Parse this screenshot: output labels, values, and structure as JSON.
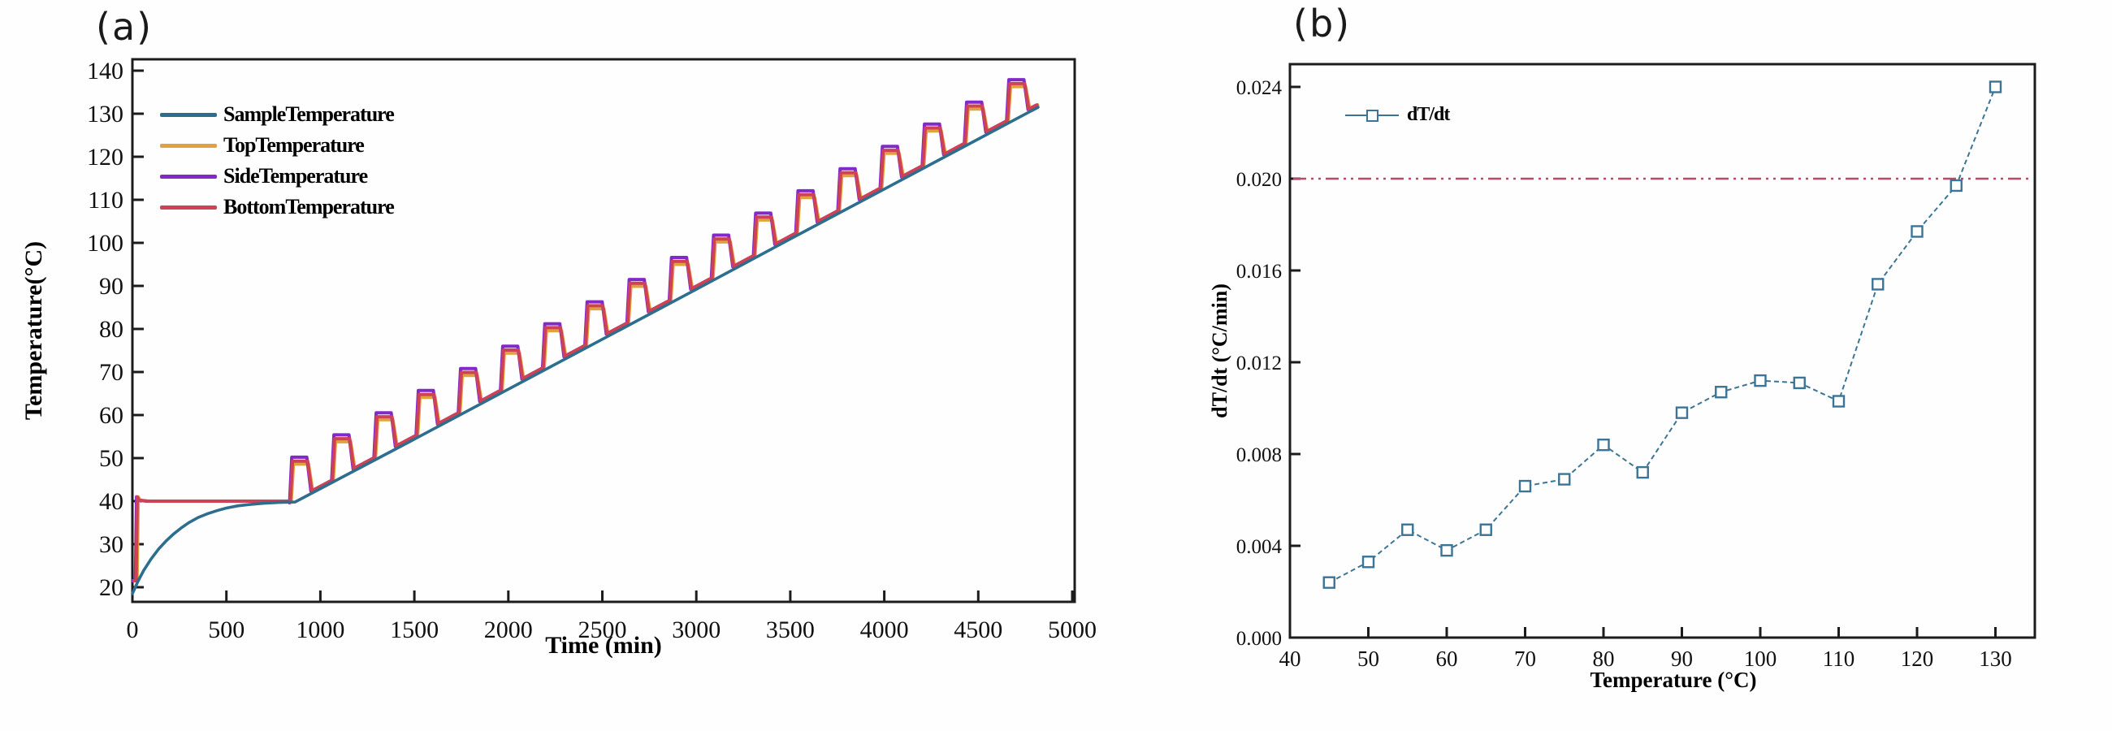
{
  "colors": {
    "sample_blue": "#2d6d8e",
    "top_orange": "#e2a23b",
    "side_purple": "#8229c9",
    "bottom_crimson": "#cf4155",
    "dtdt_blue": "#3c7495",
    "ref_red": "#bc4a66",
    "axis_black": "#1c1c1c"
  },
  "chart_data": [
    {
      "type": "line",
      "panel": "(a)",
      "xlabel": "Time (min)",
      "ylabel": "Temperature(°C)",
      "xlim": [
        0,
        5015
      ],
      "ylim": [
        16.6,
        142.6
      ],
      "xticks": [
        0,
        500,
        1000,
        1500,
        2000,
        2500,
        3000,
        3500,
        4000,
        4500,
        5000
      ],
      "yticks": [
        20,
        30,
        40,
        50,
        60,
        70,
        80,
        90,
        100,
        110,
        120,
        130,
        140
      ],
      "grid": false,
      "legend_position": "upper-left-inside",
      "legend": [
        {
          "name": "SampleTemperature",
          "color": "#2d6d8e"
        },
        {
          "name": "TopTemperature",
          "color": "#e2a23b"
        },
        {
          "name": "SideTemperature",
          "color": "#8229c9"
        },
        {
          "name": "BottomTemperature",
          "color": "#cf4155"
        }
      ],
      "series": {
        "sample": {
          "name": "SampleTemperature",
          "color": "#2d6d8e",
          "points": [
            [
              0,
              18.5
            ],
            [
              30,
              21.4
            ],
            [
              60,
              23.9
            ],
            [
              100,
              26.6
            ],
            [
              140,
              28.9
            ],
            [
              180,
              30.8
            ],
            [
              220,
              32.4
            ],
            [
              260,
              33.8
            ],
            [
              300,
              35.0
            ],
            [
              350,
              36.2
            ],
            [
              400,
              37.1
            ],
            [
              450,
              37.8
            ],
            [
              500,
              38.4
            ],
            [
              560,
              38.9
            ],
            [
              620,
              39.2
            ],
            [
              700,
              39.5
            ],
            [
              780,
              39.7
            ],
            [
              865,
              39.8
            ],
            [
              1500,
              54.4
            ],
            [
              2000,
              66.0
            ],
            [
              2500,
              77.6
            ],
            [
              3000,
              89.2
            ],
            [
              3500,
              100.9
            ],
            [
              4000,
              112.5
            ],
            [
              4400,
              121.8
            ],
            [
              4818,
              131.5
            ]
          ]
        },
        "furnace_pulses": {
          "description": "Top/Side/Bottom heater curves: fast rise to 40C, plateau, then 18 stepped pulses ~5C apart riding above the sample ramp",
          "start_times": [
            840,
            1064,
            1289,
            1513,
            1738,
            1962,
            2186,
            2411,
            2635,
            2860,
            3084,
            3308,
            3533,
            3757,
            3982,
            4206,
            4430,
            4655
          ],
          "tops": [
            49.3,
            54.5,
            59.6,
            64.8,
            69.9,
            75.1,
            80.3,
            85.4,
            90.6,
            95.7,
            100.9,
            106.0,
            111.2,
            116.3,
            121.5,
            126.7,
            131.8,
            137.0
          ],
          "rise": 12,
          "hold": 80,
          "fall": 22,
          "trough_offset": 0.7,
          "baseline": {
            "t0": 865,
            "T0": 39.6,
            "slope": 0.02325
          },
          "initial": [
            [
              0,
              21.5
            ],
            [
              20,
              21.5
            ],
            [
              26,
              41.0
            ],
            [
              36,
              40.2
            ],
            [
              80,
              40.0
            ],
            [
              838,
              40.0
            ]
          ],
          "end": [
            4818,
            131.8
          ],
          "variants": [
            {
              "name": "TopTemperature",
              "color": "#e2a23b",
              "tshift": 5,
              "topoff": -0.7,
              "width": 4
            },
            {
              "name": "SideTemperature",
              "color": "#8229c9",
              "tshift": -4,
              "topoff": 0.9,
              "width": 4
            },
            {
              "name": "BottomTemperature",
              "color": "#cf4155",
              "tshift": 0,
              "topoff": 0,
              "width": 4
            }
          ]
        }
      }
    },
    {
      "type": "scatter-line",
      "panel": "(b)",
      "xlabel": "Temperature (°C)",
      "ylabel": "dT/dt (°C/min)",
      "xlim": [
        40,
        135
      ],
      "ylim": [
        0,
        0.025
      ],
      "xticks": [
        40,
        50,
        60,
        70,
        80,
        90,
        100,
        110,
        120,
        130
      ],
      "yticks": [
        {
          "value": 0.0,
          "label": "0.000"
        },
        {
          "value": 0.004,
          "label": "0.004"
        },
        {
          "value": 0.008,
          "label": "0.008"
        },
        {
          "value": 0.012,
          "label": "0.012"
        },
        {
          "value": 0.016,
          "label": "0.016"
        },
        {
          "value": 0.02,
          "label": "0.020"
        },
        {
          "value": 0.024,
          "label": "0.024"
        }
      ],
      "grid": false,
      "legend_position": "upper-left-inside",
      "legend": [
        {
          "name": "dT/dt",
          "color": "#3c7495"
        }
      ],
      "ref_line": {
        "value": 0.02,
        "color": "#bc4a66",
        "style": "dash-dot-dot"
      },
      "series": {
        "name": "dT/dt",
        "color": "#3c7495",
        "marker": "open-square",
        "x": [
          45,
          50,
          55,
          60,
          65,
          70,
          75,
          80,
          85,
          90,
          95,
          100,
          105,
          110,
          115,
          120,
          125,
          130
        ],
        "y": [
          0.0024,
          0.0033,
          0.0047,
          0.0038,
          0.0047,
          0.0066,
          0.0069,
          0.0084,
          0.0072,
          0.0098,
          0.0107,
          0.0112,
          0.0111,
          0.0103,
          0.0154,
          0.0177,
          0.0197,
          0.024
        ]
      }
    }
  ]
}
